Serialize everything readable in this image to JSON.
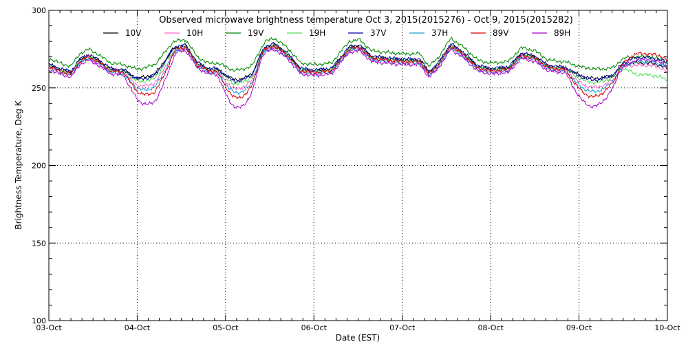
{
  "chart_data": {
    "type": "line",
    "title": "Observed microwave brightness temperature Oct  3, 2015(2015276) - Oct  9, 2015(2015282)",
    "xlabel": "Date (EST)",
    "ylabel": "Brightness Temperature, Deg K",
    "xlim": [
      0,
      7
    ],
    "ylim": [
      100,
      300
    ],
    "x_ticks": [
      {
        "value": 0,
        "label": "03-Oct"
      },
      {
        "value": 1,
        "label": "04-Oct"
      },
      {
        "value": 2,
        "label": "05-Oct"
      },
      {
        "value": 3,
        "label": "06-Oct"
      },
      {
        "value": 4,
        "label": "07-Oct"
      },
      {
        "value": 5,
        "label": "08-Oct"
      },
      {
        "value": 6,
        "label": "09-Oct"
      },
      {
        "value": 7,
        "label": "10-Oct"
      }
    ],
    "y_ticks": [
      100,
      150,
      200,
      250,
      300
    ],
    "grid": true,
    "legend_position": "top",
    "series": [
      {
        "name": "10V",
        "color": "#000000",
        "offset": 0,
        "night_drop": 0.7
      },
      {
        "name": "10H",
        "color": "#ff66cc",
        "offset": -1.5,
        "night_drop": 1.3
      },
      {
        "name": "19V",
        "color": "#008800",
        "offset": 4,
        "night_drop": 0.4
      },
      {
        "name": "19H",
        "color": "#55dd55",
        "offset": -0.5,
        "night_drop": 1.0
      },
      {
        "name": "37V",
        "color": "#0000aa",
        "offset": 0.5,
        "night_drop": 0.9
      },
      {
        "name": "37H",
        "color": "#2299dd",
        "offset": -2,
        "night_drop": 1.6
      },
      {
        "name": "89V",
        "color": "#dd0000",
        "offset": -1,
        "night_drop": 2.2
      },
      {
        "name": "89H",
        "color": "#aa00cc",
        "offset": -3,
        "night_drop": 2.8
      }
    ],
    "base_profile": {
      "x": [
        0,
        0.12,
        0.25,
        0.35,
        0.45,
        0.55,
        0.7,
        0.85,
        1.0,
        1.2,
        1.4,
        1.55,
        1.68,
        1.8,
        1.95,
        2.1,
        2.3,
        2.45,
        2.55,
        2.7,
        2.85,
        3.0,
        3.2,
        3.4,
        3.52,
        3.65,
        3.8,
        4.0,
        4.2,
        4.3,
        4.4,
        4.55,
        4.7,
        4.85,
        5.0,
        5.2,
        5.35,
        5.5,
        5.65,
        5.8,
        6.0,
        6.2,
        6.4,
        6.5,
        6.6,
        6.8,
        6.95,
        7.0
      ],
      "values": [
        265,
        262,
        260,
        268,
        271,
        268,
        262,
        261,
        260,
        264,
        276,
        277,
        266,
        262,
        262,
        260,
        262,
        276,
        278,
        272,
        262,
        261,
        262,
        276,
        277,
        270,
        269,
        268,
        268,
        260,
        265,
        278,
        272,
        264,
        262,
        263,
        272,
        270,
        264,
        263,
        262,
        261,
        260,
        265,
        266,
        266,
        264,
        262
      ]
    },
    "night_dips": [
      [
        0.85,
        1.45
      ],
      [
        1.9,
        2.4
      ],
      [
        5.85,
        6.45
      ]
    ],
    "late_divergence": {
      "start": 6.45,
      "offsets": {
        "10V": 0,
        "10H": 0,
        "19V": 0,
        "19H": -7,
        "37V": 3,
        "37H": 3,
        "89V": 7,
        "89H": 5
      }
    }
  }
}
